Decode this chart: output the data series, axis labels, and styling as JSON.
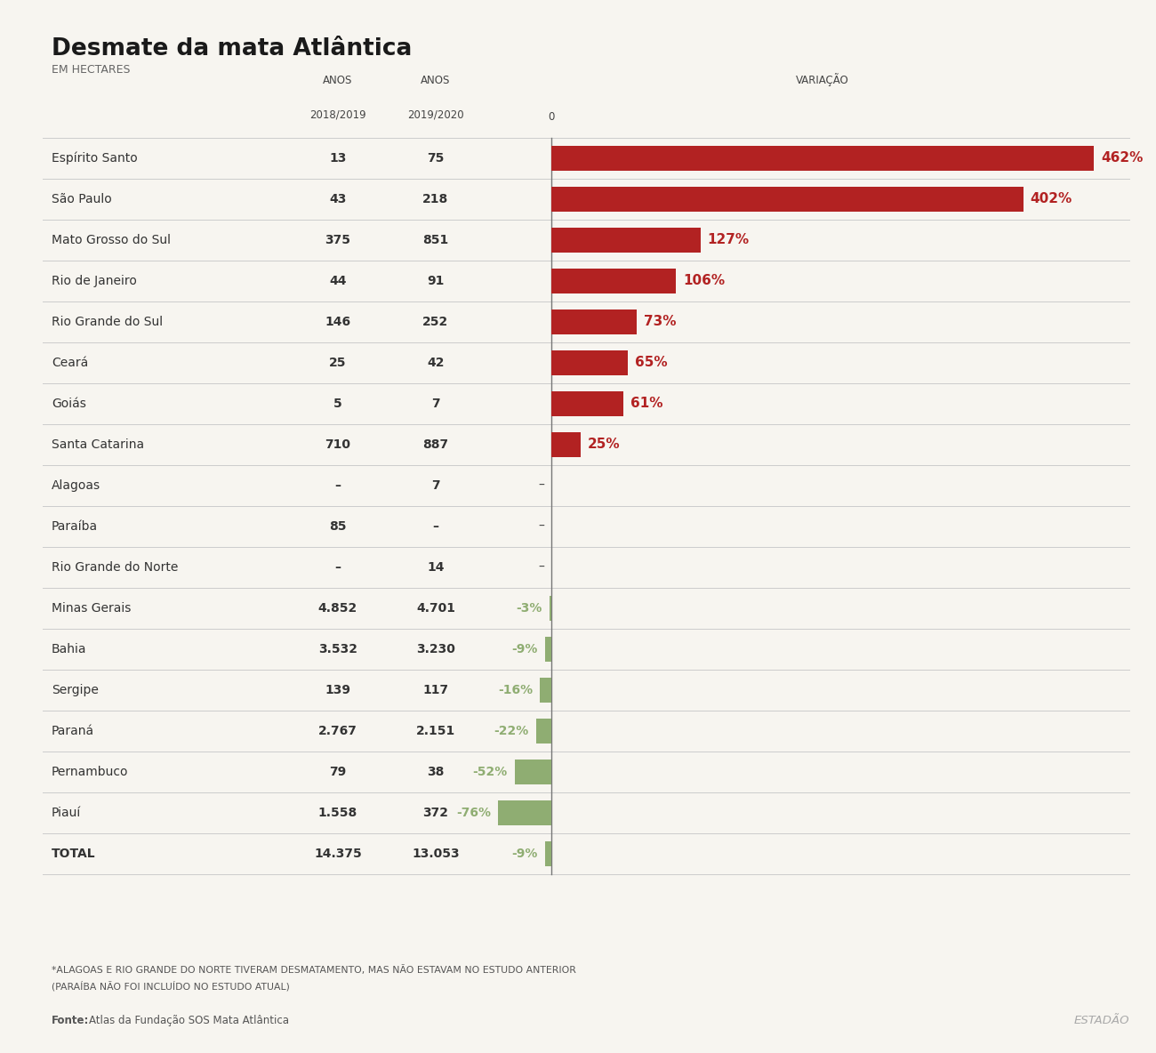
{
  "title": "Desmate da mata Atlântica",
  "subtitle": "EM HECTARES",
  "bg_color": "#f7f5f0",
  "categories": [
    "Espírito Santo",
    "São Paulo",
    "Mato Grosso do Sul",
    "Rio de Janeiro",
    "Rio Grande do Sul",
    "Ceará",
    "Goiás",
    "Santa Catarina",
    "Alagoas",
    "Paraíba",
    "Rio Grande do Norte",
    "Minas Gerais",
    "Bahia",
    "Sergipe",
    "Paraná",
    "Pernambuco",
    "Piauí",
    "TOTAL"
  ],
  "val_2018": [
    "13",
    "43",
    "375",
    "44",
    "146",
    "25",
    "5",
    "710",
    "–",
    "85",
    "–",
    "4.852",
    "3.532",
    "139",
    "2.767",
    "79",
    "1.558",
    "14.375"
  ],
  "val_2019": [
    "75",
    "218",
    "851",
    "91",
    "252",
    "42",
    "7",
    "887",
    "7",
    "–",
    "14",
    "4.701",
    "3.230",
    "117",
    "2.151",
    "38",
    "372",
    "13.053"
  ],
  "variations": [
    462,
    402,
    127,
    106,
    73,
    65,
    61,
    25,
    null,
    null,
    null,
    -3,
    -9,
    -16,
    -22,
    -52,
    -76,
    -9
  ],
  "var_labels": [
    "462%",
    "402%",
    "127%",
    "106%",
    "73%",
    "65%",
    "61%",
    "25%",
    "–",
    "–",
    "–",
    "-3%",
    "-9%",
    "-16%",
    "-22%",
    "-52%",
    "-76%",
    "-9%"
  ],
  "is_bold": [
    false,
    false,
    false,
    false,
    false,
    false,
    false,
    false,
    false,
    false,
    false,
    false,
    false,
    false,
    false,
    false,
    false,
    true
  ],
  "pos_color": "#b22222",
  "neg_color": "#8fad72",
  "dash_color": "#444444",
  "line_color": "#cccccc",
  "zero_line_color": "#777777",
  "text_color": "#333333",
  "footnote1": "*ALAGOAS E RIO GRANDE DO NORTE TIVERAM DESMATAMENTO, MAS NÃO ESTAVAM NO ESTUDO ANTERIOR",
  "footnote2": "(PARAÍBA NÃO FOI INCLUÍDO NO ESTUDO ATUAL)",
  "fonte_label": "Fonte:",
  "fonte_text": "Atlas da Fundação SOS Mata Atlântica",
  "logo": "ESTADÃO"
}
